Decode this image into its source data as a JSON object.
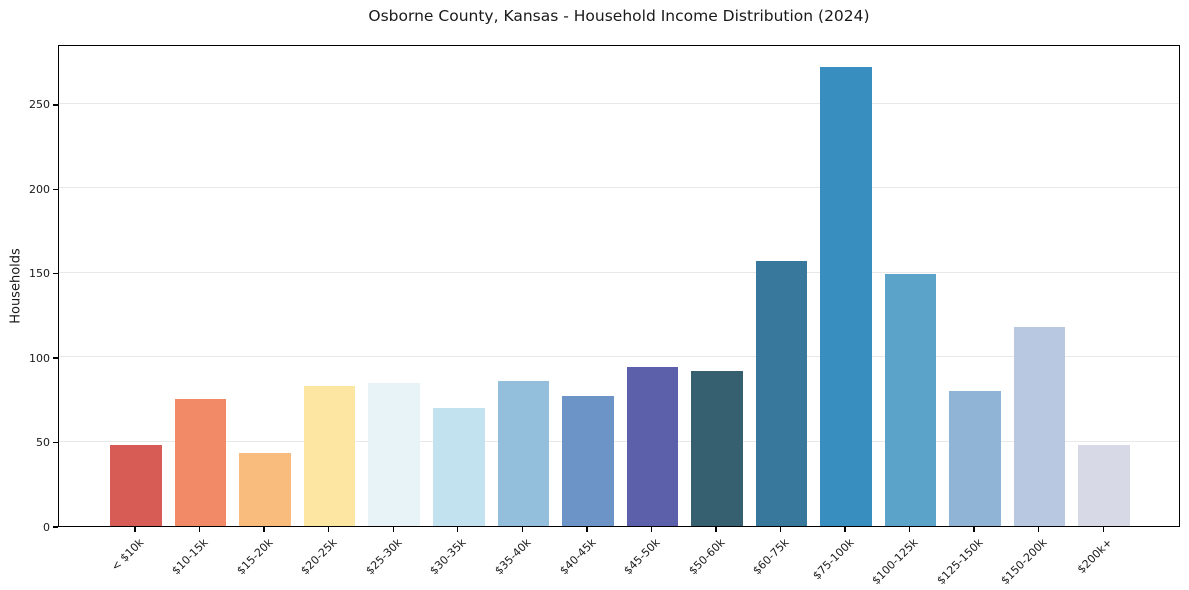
{
  "chart_data": {
    "type": "bar",
    "title": "Osborne County, Kansas - Household Income Distribution (2024)",
    "ylabel": "Households",
    "xlabel": "",
    "categories": [
      "< $10k",
      "$10-15k",
      "$15-20k",
      "$20-25k",
      "$25-30k",
      "$30-35k",
      "$35-40k",
      "$40-45k",
      "$45-50k",
      "$50-60k",
      "$60-75k",
      "$75-100k",
      "$100-125k",
      "$125-150k",
      "$150-200k",
      "$200k+"
    ],
    "values": [
      48,
      75,
      43,
      83,
      85,
      70,
      86,
      77,
      94,
      92,
      157,
      272,
      149,
      80,
      118,
      48
    ],
    "bar_colors": [
      "#d65c55",
      "#f28a68",
      "#fabc7d",
      "#fde6a2",
      "#e7f3f7",
      "#c1e2ee",
      "#93bfdd",
      "#6c94c7",
      "#5c60ab",
      "#365f70",
      "#37789c",
      "#388fbf",
      "#5ba3c9",
      "#8fb4d6",
      "#b8c8e0",
      "#d8d9e6"
    ],
    "ylim": [
      0,
      285.5
    ],
    "yticks": [
      0,
      50,
      100,
      150,
      200,
      250
    ],
    "grid": "horizontal",
    "legend": "none",
    "colors": {
      "grid": "#e8e8e8",
      "spine": "#000000",
      "text": "#1a1a1a",
      "background": "#ffffff"
    }
  }
}
